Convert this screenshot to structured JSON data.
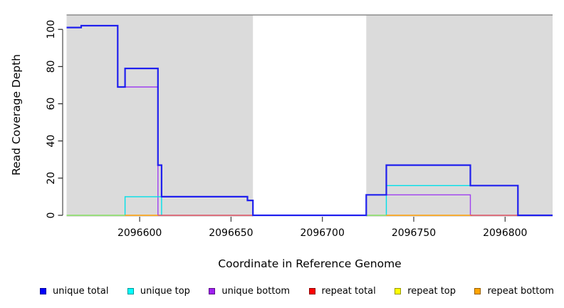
{
  "chart_data": {
    "type": "line",
    "subtype": "step",
    "title": "",
    "xlabel": "Coordinate in Reference Genome",
    "ylabel": "Read Coverage Depth",
    "xlim": [
      2096560,
      2096826
    ],
    "ylim": [
      0,
      108
    ],
    "x_ticks": [
      2096600,
      2096650,
      2096700,
      2096750,
      2096800
    ],
    "y_ticks": [
      0,
      20,
      40,
      60,
      80,
      100
    ],
    "grid": "off",
    "legend_position": "bottom",
    "plot_bg_color": "#DBDBDB",
    "no_coverage_band": {
      "x_start": 2096662,
      "x_end": 2096724,
      "color": "#FFFFFF"
    },
    "series": [
      {
        "name": "unique total",
        "color": "#2020EE",
        "line_width": 2.2,
        "segments": [
          [
            [
              2096560,
              101
            ],
            [
              2096568,
              102
            ],
            [
              2096588,
              69
            ],
            [
              2096592,
              79
            ],
            [
              2096610,
              27
            ],
            [
              2096612,
              10
            ],
            [
              2096659,
              8
            ],
            [
              2096662,
              0
            ],
            [
              2096724,
              11
            ],
            [
              2096735,
              27
            ],
            [
              2096781,
              16
            ],
            [
              2096807,
              0
            ],
            [
              2096826,
              0
            ]
          ]
        ]
      },
      {
        "name": "unique top",
        "color": "#00E0E8",
        "line_width": 1.4,
        "segments": [
          [
            [
              2096560,
              0
            ],
            [
              2096592,
              10
            ],
            [
              2096612,
              0
            ]
          ],
          [
            [
              2096724,
              0
            ],
            [
              2096735,
              16
            ],
            [
              2096807,
              0
            ]
          ]
        ]
      },
      {
        "name": "unique bottom",
        "color": "#A040F0",
        "line_width": 1.4,
        "segments": [
          [
            [
              2096560,
              101
            ],
            [
              2096568,
              102
            ],
            [
              2096588,
              69
            ],
            [
              2096610,
              0
            ]
          ],
          [
            [
              2096724,
              11
            ],
            [
              2096781,
              0
            ]
          ]
        ]
      },
      {
        "name": "repeat total",
        "color": "#DD4E60",
        "line_width": 1.4,
        "segments": [
          [
            [
              2096610,
              0
            ],
            [
              2096662,
              0
            ]
          ],
          [
            [
              2096781,
              0
            ],
            [
              2096807,
              0
            ]
          ]
        ]
      },
      {
        "name": "repeat top",
        "color": "#FFE000",
        "line_width": 1.4,
        "segments": [
          [
            [
              2096560,
              0
            ],
            [
              2096592,
              0
            ]
          ],
          [
            [
              2096724,
              0
            ],
            [
              2096735,
              0
            ]
          ]
        ]
      },
      {
        "name": "repeat bottom",
        "color": "#FF9D00",
        "line_width": 1.4,
        "segments": [
          [
            [
              2096592,
              0
            ],
            [
              2096610,
              0
            ]
          ],
          [
            [
              2096735,
              0
            ],
            [
              2096782,
              0
            ]
          ]
        ]
      }
    ]
  },
  "legend": {
    "items": [
      {
        "label": "unique total",
        "fill": "#0000FF",
        "border": "#0000A0"
      },
      {
        "label": "unique top",
        "fill": "#00FFFF",
        "border": "#009898"
      },
      {
        "label": "unique bottom",
        "fill": "#A020F0",
        "border": "#5A0E88"
      },
      {
        "label": "repeat total",
        "fill": "#FF0000",
        "border": "#900000"
      },
      {
        "label": "repeat top",
        "fill": "#FFFF00",
        "border": "#989800"
      },
      {
        "label": "repeat bottom",
        "fill": "#FFA500",
        "border": "#985E00"
      }
    ]
  }
}
